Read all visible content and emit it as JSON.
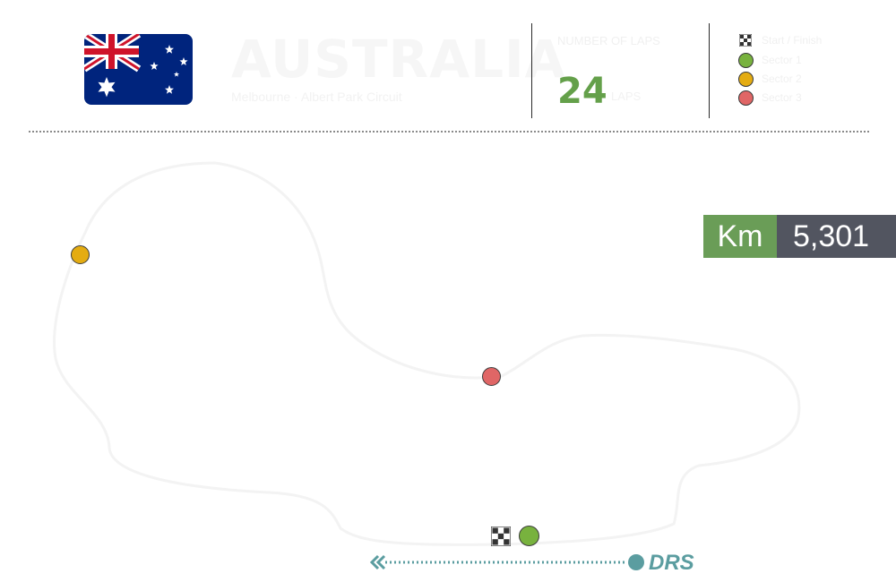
{
  "header": {
    "country": "AUSTRALIA",
    "country_subtitle": "Melbourne · Albert Park Circuit",
    "laps_label": "NUMBER OF LAPS",
    "laps_value": "24",
    "laps_unit": "LAPS"
  },
  "legend": {
    "items": [
      {
        "icon": "checkered-flag-icon",
        "label": "Start / Finish"
      },
      {
        "icon": "green-dot-icon",
        "label": "Sector 1",
        "color": "#78b23e"
      },
      {
        "icon": "yellow-dot-icon",
        "label": "Sector 2",
        "color": "#e4ac12"
      },
      {
        "icon": "red-dot-icon",
        "label": "Sector 3",
        "color": "#e06666"
      }
    ]
  },
  "circuit": {
    "length_unit": "Km",
    "length_value": "5,301"
  },
  "drs": {
    "label": "DRS",
    "color": "#5b9da0"
  },
  "colors": {
    "accent_green": "#64a04a",
    "km_label_bg": "#6a9d57",
    "km_value_bg": "#525560",
    "sector1": "#78b23e",
    "sector2": "#e4ac12",
    "sector3": "#e06666"
  }
}
